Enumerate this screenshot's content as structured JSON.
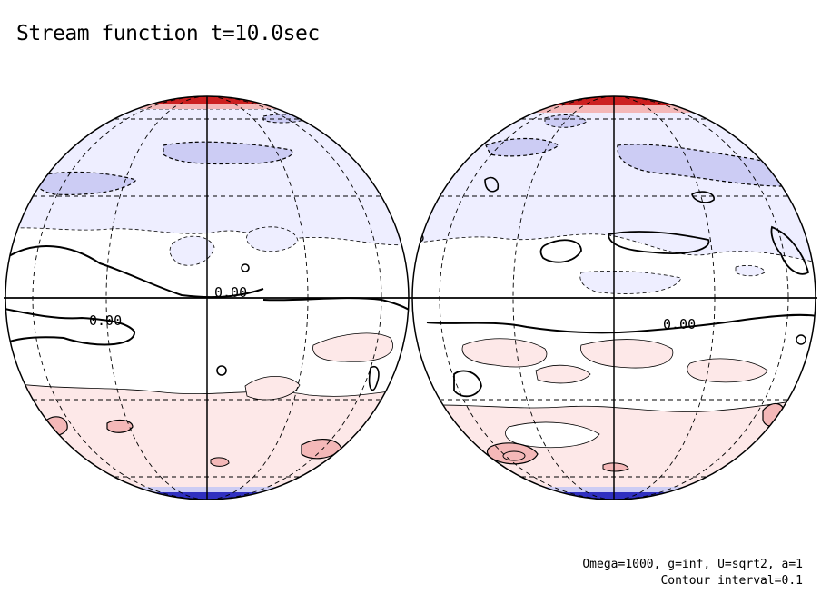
{
  "title": "Stream function t=10.0sec",
  "footer": {
    "params": "Omega=1000, g=inf, U=sqrt2, a=1",
    "contour_interval": "Contour interval=0.1"
  },
  "contour_labels": {
    "left_upper": "0.00",
    "left_lower": "0.00",
    "right": "0.00"
  },
  "colors": {
    "positive_light": "#fde8e8",
    "positive_mid": "#f4b8b8",
    "positive_strong": "#cc2020",
    "negative_light": "#eeeeff",
    "negative_mid": "#ccccf4",
    "negative_strong": "#3030c0",
    "outline": "#000000"
  }
}
